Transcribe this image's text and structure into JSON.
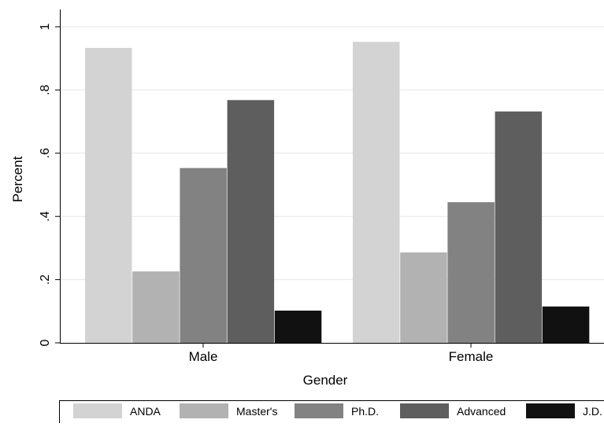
{
  "chart_data": {
    "type": "bar",
    "xlabel": "Gender",
    "ylabel": "Percent",
    "categories": [
      "Male",
      "Female"
    ],
    "ylim": [
      0,
      1.05
    ],
    "yticks": [
      0,
      0.2,
      0.4,
      0.6,
      0.8,
      1
    ],
    "ytick_labels": [
      "0",
      ".2",
      ".4",
      ".6",
      ".8",
      "1"
    ],
    "grid": true,
    "legend_position": "bottom",
    "series": [
      {
        "name": "ANDA",
        "color": "#d3d3d3",
        "values": [
          0.933,
          0.952
        ]
      },
      {
        "name": "Master's",
        "color": "#b2b2b2",
        "values": [
          0.226,
          0.286
        ]
      },
      {
        "name": "Ph.D.",
        "color": "#828282",
        "values": [
          0.553,
          0.445
        ]
      },
      {
        "name": "Advanced",
        "color": "#5e5e5e",
        "values": [
          0.768,
          0.732
        ]
      },
      {
        "name": "J.D.",
        "color": "#111111",
        "values": [
          0.102,
          0.115
        ]
      }
    ]
  }
}
